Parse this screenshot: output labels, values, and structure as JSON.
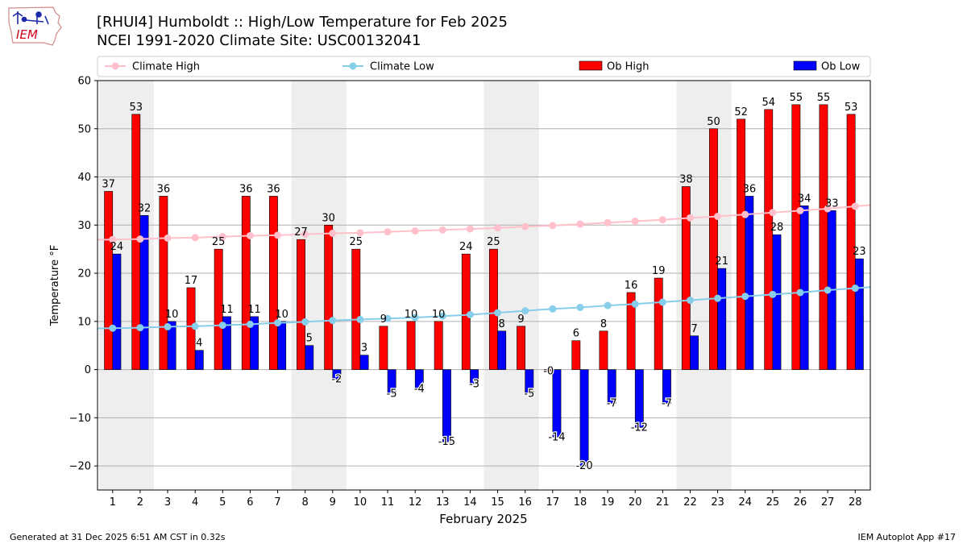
{
  "title_line1": "[RHUI4] Humboldt :: High/Low Temperature for Feb 2025",
  "title_line2": "NCEI 1991-2020 Climate Site: USC00132041",
  "logo_text": "IEM",
  "footer_left": "Generated at 31 Dec 2025 6:51 AM CST in 0.32s",
  "footer_right": "IEM Autoplot App #17",
  "colors": {
    "ob_high": "#ff0000",
    "ob_low": "#0000ff",
    "climate_high": "#ffc0cb",
    "climate_low": "#87ceeb",
    "weekend_shade": "#eeeeee",
    "grid": "#b0b0b0"
  },
  "chart_data": {
    "type": "bar",
    "xlabel": "February 2025",
    "ylabel": "Temperature °F",
    "ylim": [
      -25,
      60
    ],
    "yticks": [
      -20,
      -10,
      0,
      10,
      20,
      30,
      40,
      50,
      60
    ],
    "grid": "y",
    "legend_position": "top",
    "categories": [
      1,
      2,
      3,
      4,
      5,
      6,
      7,
      8,
      9,
      10,
      11,
      12,
      13,
      14,
      15,
      16,
      17,
      18,
      19,
      20,
      21,
      22,
      23,
      24,
      25,
      26,
      27,
      28
    ],
    "shaded_days": [
      [
        1,
        2
      ],
      [
        8,
        9
      ],
      [
        15,
        16
      ],
      [
        22,
        23
      ]
    ],
    "series": [
      {
        "name": "Climate High",
        "kind": "line",
        "values": [
          27.0,
          27.1,
          27.3,
          27.4,
          27.6,
          27.8,
          27.9,
          28.1,
          28.3,
          28.4,
          28.6,
          28.8,
          29.0,
          29.2,
          29.4,
          29.7,
          29.9,
          30.2,
          30.5,
          30.8,
          31.1,
          31.5,
          31.8,
          32.2,
          32.6,
          33.0,
          33.4,
          33.9
        ]
      },
      {
        "name": "Climate Low",
        "kind": "line",
        "values": [
          8.6,
          8.7,
          8.9,
          9.0,
          9.2,
          9.4,
          9.7,
          9.9,
          10.2,
          10.4,
          10.6,
          10.8,
          11.1,
          11.4,
          11.8,
          12.2,
          12.6,
          12.9,
          13.3,
          13.6,
          14.0,
          14.4,
          14.8,
          15.2,
          15.6,
          16.0,
          16.5,
          16.9
        ]
      },
      {
        "name": "Ob High",
        "kind": "bar",
        "values": [
          37,
          53,
          36,
          17,
          25,
          36,
          36,
          27,
          30,
          25,
          9,
          10,
          10,
          24,
          25,
          9,
          -0.3,
          6,
          8,
          16,
          19,
          38,
          50,
          52,
          54,
          55,
          55,
          53
        ],
        "labels": [
          "37",
          "53",
          "36",
          "17",
          "25",
          "36",
          "36",
          "27",
          "30",
          "25",
          "9",
          "10",
          "10",
          "24",
          "25",
          "9",
          "-0",
          "6",
          "8",
          "16",
          "19",
          "38",
          "50",
          "52",
          "54",
          "55",
          "55",
          "53"
        ]
      },
      {
        "name": "Ob Low",
        "kind": "bar",
        "values": [
          24,
          32,
          10,
          4,
          11,
          11,
          10,
          5,
          -2,
          3,
          -5,
          -4,
          -15,
          -3,
          8,
          -5,
          -14,
          -20,
          -7,
          -12,
          -7,
          7,
          21,
          36,
          28,
          34,
          33,
          23
        ],
        "labels": [
          "24",
          "32",
          "10",
          "4",
          "11",
          "11",
          "10",
          "5",
          "-2",
          "3",
          "-5",
          "-4",
          "-15",
          "-3",
          "8",
          "-5",
          "-14",
          "-20",
          "-7",
          "-12",
          "-7",
          "7",
          "21",
          "36",
          "28",
          "34",
          "33",
          "23"
        ]
      }
    ]
  }
}
